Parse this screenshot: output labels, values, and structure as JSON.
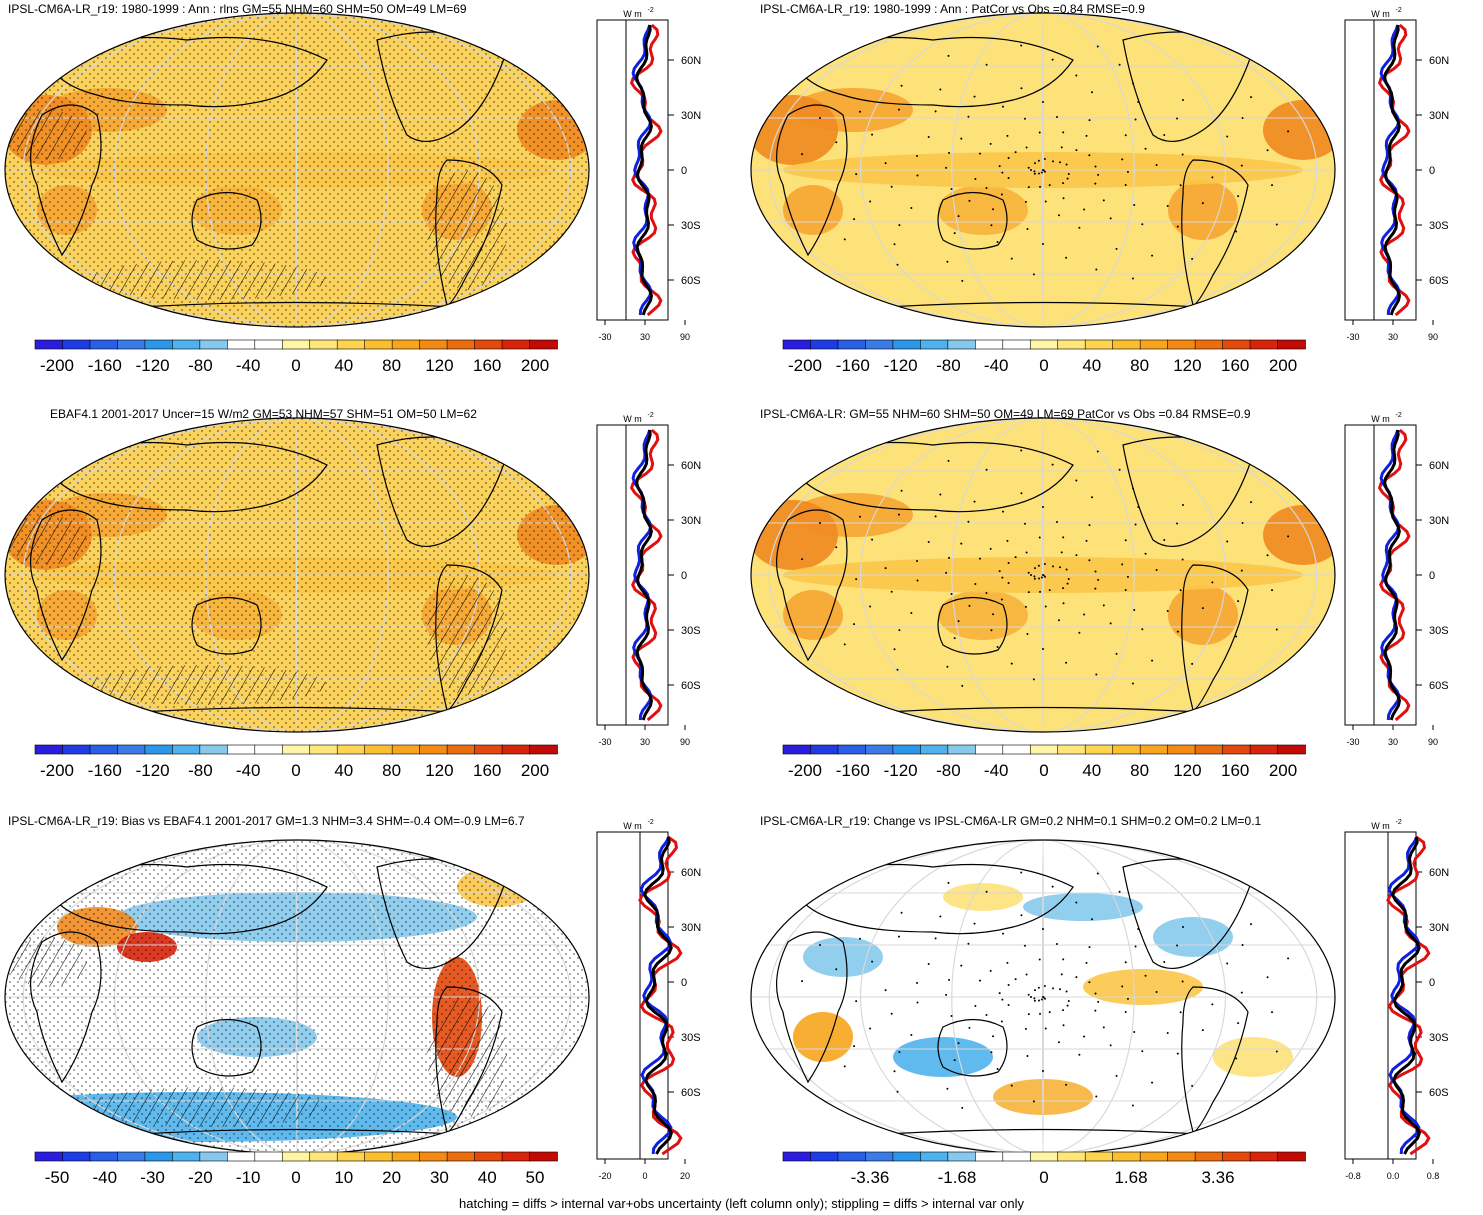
{
  "footer": "hatching = diffs > internal var+obs uncertainty (left column only); stippling = diffs > internal var only",
  "units_label": "W m",
  "units_sup": "-2",
  "panels": [
    {
      "title": "IPSL-CM6A-LR_r19: 1980-1999 : Ann : rlns GM=55 NHM=60 SHM=50 OM=49 LM=69",
      "colorbar_labels": [
        "-200",
        "-160",
        "-120",
        "-80",
        "-40",
        "0",
        "40",
        "80",
        "120",
        "160",
        "200"
      ],
      "colorbar_colors": [
        "#2b1de0",
        "#1d3ce6",
        "#2a5ee8",
        "#3b7be8",
        "#2b97e8",
        "#4fb2ec",
        "#86c9ec",
        "#ffffff",
        "#ffffff",
        "#fff5a6",
        "#ffe67a",
        "#ffd550",
        "#fbbf2e",
        "#f7a51c",
        "#f28a14",
        "#ec6c10",
        "#e4480c",
        "#d8240a",
        "#c40a06"
      ],
      "map_fill": "#fbd35c",
      "profile_ticks_x": [
        "-30",
        "30",
        "90"
      ],
      "profile_ticks_y": [
        "60N",
        "30N",
        "0",
        "30S",
        "60S"
      ]
    },
    {
      "title": "IPSL-CM6A-LR_r19: 1980-1999 : Ann : PatCor vs Obs =0.84 RMSE=0.9",
      "colorbar_labels": [
        "-200",
        "-160",
        "-120",
        "-80",
        "-40",
        "0",
        "40",
        "80",
        "120",
        "160",
        "200"
      ],
      "colorbar_colors": [
        "#2b1de0",
        "#1d3ce6",
        "#2a5ee8",
        "#3b7be8",
        "#2b97e8",
        "#4fb2ec",
        "#86c9ec",
        "#ffffff",
        "#ffffff",
        "#fff5a6",
        "#ffe67a",
        "#ffd550",
        "#fbbf2e",
        "#f7a51c",
        "#f28a14",
        "#ec6c10",
        "#e4480c",
        "#d8240a",
        "#c40a06"
      ],
      "map_fill": "#fde27a",
      "profile_ticks_x": [
        "-30",
        "30",
        "90"
      ],
      "profile_ticks_y": [
        "60N",
        "30N",
        "0",
        "30S",
        "60S"
      ]
    },
    {
      "title": "EBAF4.1 2001-2017 Uncer=15 W/m2 GM=53 NHM=57 SHM=51 OM=50 LM=62",
      "colorbar_labels": [
        "-200",
        "-160",
        "-120",
        "-80",
        "-40",
        "0",
        "40",
        "80",
        "120",
        "160",
        "200"
      ],
      "colorbar_colors": [
        "#2b1de0",
        "#1d3ce6",
        "#2a5ee8",
        "#3b7be8",
        "#2b97e8",
        "#4fb2ec",
        "#86c9ec",
        "#ffffff",
        "#ffffff",
        "#fff5a6",
        "#ffe67a",
        "#ffd550",
        "#fbbf2e",
        "#f7a51c",
        "#f28a14",
        "#ec6c10",
        "#e4480c",
        "#d8240a",
        "#c40a06"
      ],
      "map_fill": "#fbd35c",
      "profile_ticks_x": [
        "-30",
        "30",
        "90"
      ],
      "profile_ticks_y": [
        "60N",
        "30N",
        "0",
        "30S",
        "60S"
      ]
    },
    {
      "title": "IPSL-CM6A-LR: GM=55 NHM=60 SHM=50 OM=49 LM=69 PatCor vs Obs =0.84 RMSE=0.9",
      "colorbar_labels": [
        "-200",
        "-160",
        "-120",
        "-80",
        "-40",
        "0",
        "40",
        "80",
        "120",
        "160",
        "200"
      ],
      "colorbar_colors": [
        "#2b1de0",
        "#1d3ce6",
        "#2a5ee8",
        "#3b7be8",
        "#2b97e8",
        "#4fb2ec",
        "#86c9ec",
        "#ffffff",
        "#ffffff",
        "#fff5a6",
        "#ffe67a",
        "#ffd550",
        "#fbbf2e",
        "#f7a51c",
        "#f28a14",
        "#ec6c10",
        "#e4480c",
        "#d8240a",
        "#c40a06"
      ],
      "map_fill": "#fde27a",
      "profile_ticks_x": [
        "-30",
        "30",
        "90"
      ],
      "profile_ticks_y": [
        "60N",
        "30N",
        "0",
        "30S",
        "60S"
      ]
    },
    {
      "title": "IPSL-CM6A-LR_r19: Bias vs EBAF4.1 2001-2017 GM=1.3 NHM=3.4 SHM=-0.4 OM=-0.9 LM=6.7",
      "colorbar_labels": [
        "-50",
        "-40",
        "-30",
        "-20",
        "-10",
        "0",
        "10",
        "20",
        "30",
        "40",
        "50"
      ],
      "colorbar_colors": [
        "#2b1de0",
        "#1d3ce6",
        "#2a5ee8",
        "#3b7be8",
        "#2b97e8",
        "#4fb2ec",
        "#86c9ec",
        "#ffffff",
        "#ffffff",
        "#fff5a6",
        "#ffe67a",
        "#ffd550",
        "#fbbf2e",
        "#f7a51c",
        "#f28a14",
        "#ec6c10",
        "#e4480c",
        "#d8240a",
        "#c40a06"
      ],
      "map_fill": "#ffffff",
      "profile_ticks_x": [
        "-20",
        "0",
        "20"
      ],
      "profile_ticks_y": [
        "60N",
        "30N",
        "0",
        "30S",
        "60S"
      ]
    },
    {
      "title": "IPSL-CM6A-LR_r19: Change vs IPSL-CM6A-LR GM=0.2 NHM=0.1 SHM=0.2 OM=0.2 LM=0.1",
      "colorbar_labels": [
        "-3.36",
        "-1.68",
        "0",
        "1.68",
        "3.36"
      ],
      "colorbar_colors": [
        "#2b1de0",
        "#1d3ce6",
        "#2a5ee8",
        "#3b7be8",
        "#2b97e8",
        "#4fb2ec",
        "#86c9ec",
        "#ffffff",
        "#ffffff",
        "#fff5a6",
        "#ffe67a",
        "#ffd550",
        "#fbbf2e",
        "#f7a51c",
        "#f28a14",
        "#ec6c10",
        "#e4480c",
        "#d8240a",
        "#c40a06"
      ],
      "map_fill": "#ffffff",
      "profile_ticks_x": [
        "-0.8",
        "0.0",
        "0.8"
      ],
      "profile_ticks_y": [
        "60N",
        "30N",
        "0",
        "30S",
        "60S"
      ]
    }
  ]
}
